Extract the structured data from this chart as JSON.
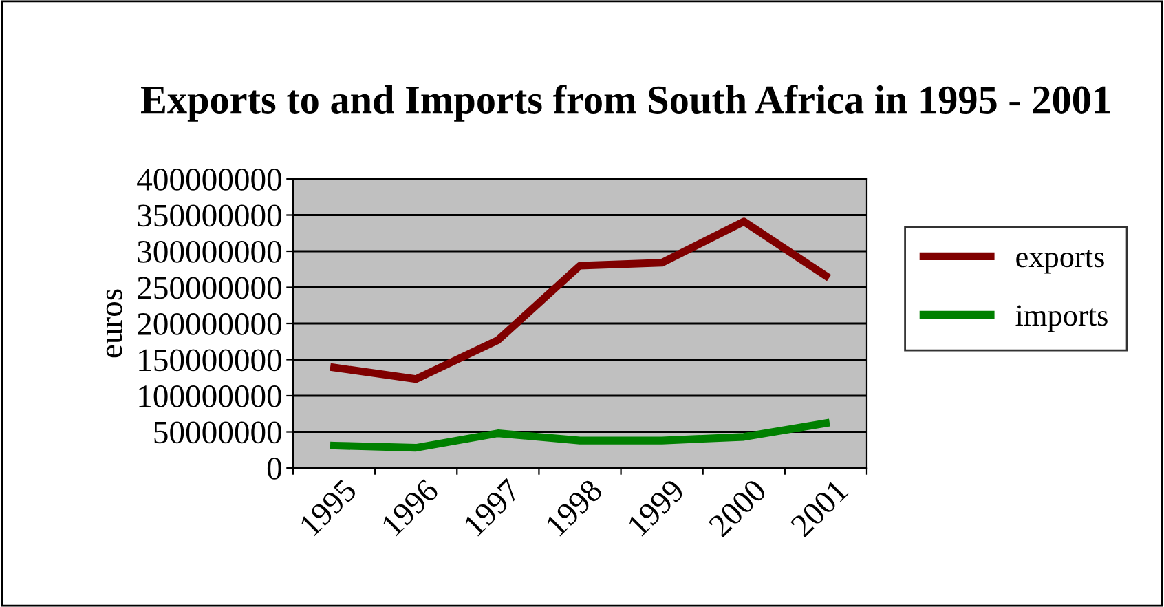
{
  "chart_data": {
    "type": "line",
    "title": "Exports to and Imports from South Africa in 1995 - 2001",
    "ylabel": "euros",
    "categories": [
      "1995",
      "1996",
      "1997",
      "1998",
      "1999",
      "2000",
      "2001"
    ],
    "series": [
      {
        "name": "exports",
        "color": "#800000",
        "values": [
          139000000,
          123000000,
          177000000,
          280000000,
          284000000,
          341000000,
          266000000
        ]
      },
      {
        "name": "imports",
        "color": "#008000",
        "values": [
          31000000,
          28000000,
          48000000,
          38000000,
          38000000,
          43000000,
          62000000
        ]
      }
    ],
    "ylim": [
      0,
      400000000
    ],
    "yticks": [
      0,
      50000000,
      100000000,
      150000000,
      200000000,
      250000000,
      300000000,
      350000000,
      400000000
    ],
    "grid": "y",
    "legend": "right",
    "marker": "none",
    "line_style": "solid"
  }
}
